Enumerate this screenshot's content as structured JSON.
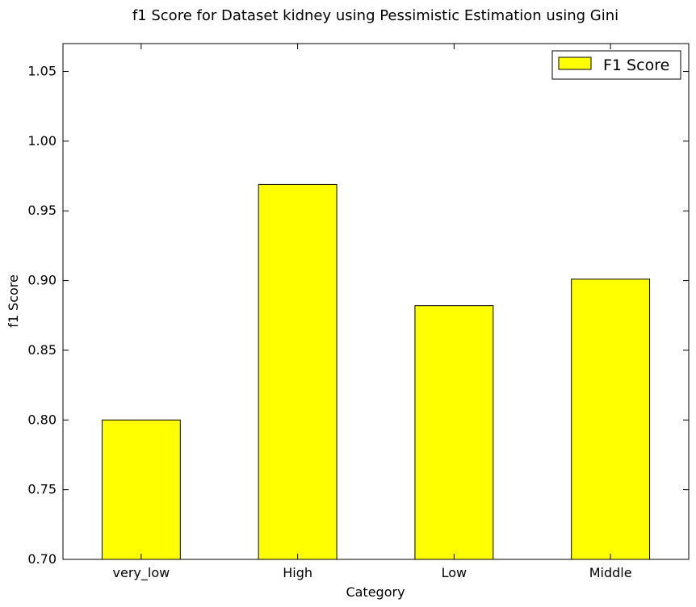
{
  "chart_data": {
    "type": "bar",
    "title": "f1 Score for Dataset kidney using Pessimistic Estimation using Gini",
    "xlabel": "Category",
    "ylabel": "f1 Score",
    "categories": [
      "very_low",
      "High",
      "Low",
      "Middle"
    ],
    "series": [
      {
        "name": "F1 Score",
        "values": [
          0.8,
          0.969,
          0.882,
          0.901
        ],
        "color": "#ffff00"
      }
    ],
    "ylim": [
      0.7,
      1.07
    ],
    "yticks": [
      "0.70",
      "0.75",
      "0.80",
      "0.85",
      "0.90",
      "0.95",
      "1.00",
      "1.05"
    ],
    "grid": false,
    "legend": "top-right"
  }
}
